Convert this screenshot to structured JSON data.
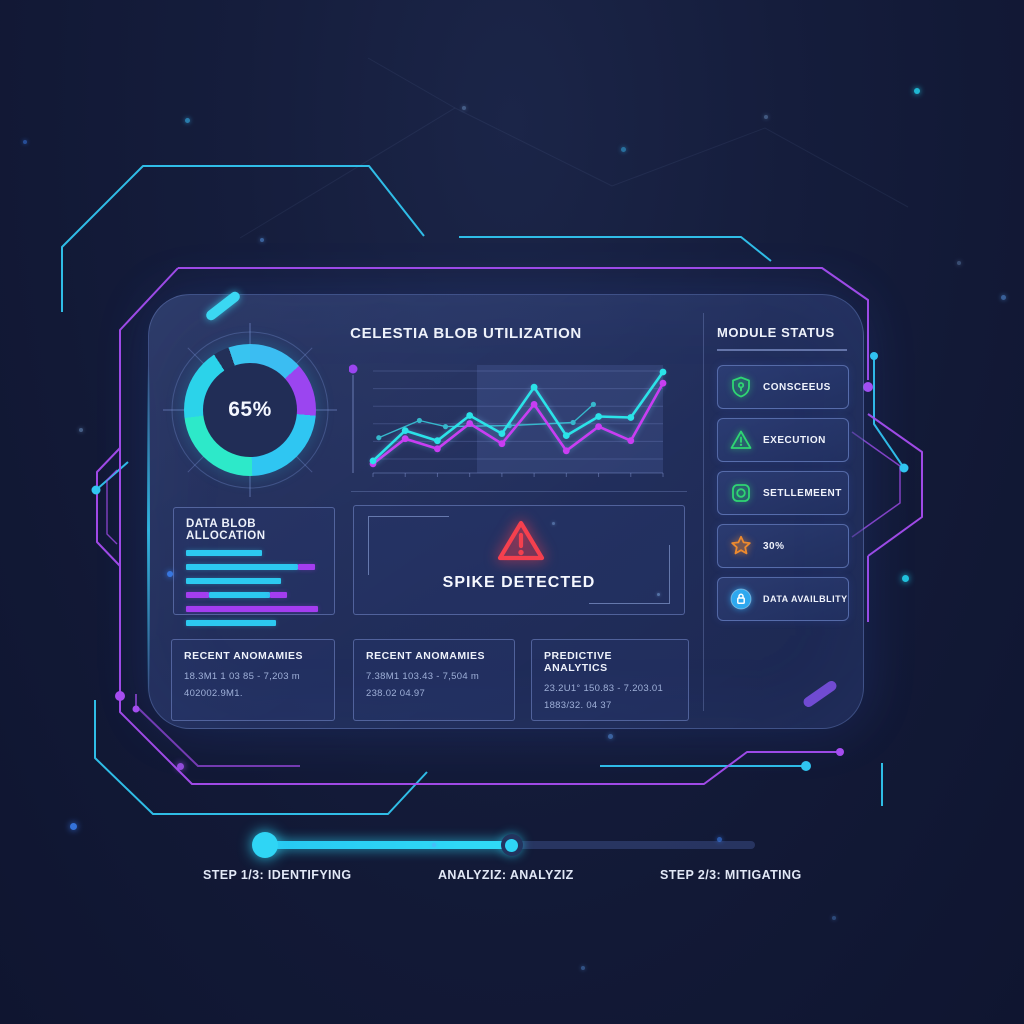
{
  "chart_data": [
    {
      "type": "donut",
      "title": "blob capacity gauge",
      "center_label": "65%",
      "slices": [
        {
          "color": "#3bbdf2",
          "start_deg": 0,
          "end_deg": 48
        },
        {
          "color": "#9b45f0",
          "start_deg": 48,
          "end_deg": 95
        },
        {
          "color": "#2fc6f2",
          "start_deg": 95,
          "end_deg": 178
        },
        {
          "color": "#2de9c9",
          "start_deg": 178,
          "end_deg": 263
        },
        {
          "color": "#2bd3ea",
          "start_deg": 263,
          "end_deg": 327
        },
        {
          "color": "#233058",
          "start_deg": 327,
          "end_deg": 341
        },
        {
          "color": "#38c4f0",
          "start_deg": 341,
          "end_deg": 360
        }
      ]
    },
    {
      "type": "line",
      "title": "CELESTIA BLOB UTILIZATION",
      "grid": true,
      "ylim": [
        0,
        105
      ],
      "series": [
        {
          "name": "trend-teal-thin",
          "color": "#36b8cc",
          "thin": true,
          "x_fraction": [
            0.02,
            0.16,
            0.25,
            0.47,
            0.69,
            0.76
          ],
          "values": [
            35,
            52,
            46,
            47,
            50,
            68
          ]
        },
        {
          "name": "blob-usage-magenta",
          "color": "#c93df2",
          "values": [
            9,
            34,
            24,
            49,
            29,
            68,
            22,
            46,
            32,
            89
          ]
        },
        {
          "name": "blob-usage-cyan",
          "color": "#2be3e8",
          "values": [
            12,
            42,
            32,
            57,
            39,
            85,
            37,
            56,
            55,
            100
          ]
        }
      ]
    },
    {
      "type": "hbar",
      "title": "DATA BLOB ALLOCATION",
      "bars": [
        [
          {
            "color": "#2cc9f0",
            "width_pct": 56
          }
        ],
        [
          {
            "color": "#2cc9f0",
            "width_pct": 82
          },
          {
            "color": "#a43df0",
            "width_pct": 13
          }
        ],
        [
          {
            "color": "#2cc9f0",
            "width_pct": 70
          }
        ],
        [
          {
            "color": "#a43df0",
            "width_pct": 17
          },
          {
            "color": "#2cc9f0",
            "width_pct": 45
          },
          {
            "color": "#a43df0",
            "width_pct": 12
          }
        ],
        [
          {
            "color": "#a43df0",
            "width_pct": 97
          }
        ],
        [
          {
            "color": "#2cc9f0",
            "width_pct": 66
          }
        ]
      ]
    }
  ],
  "alert": {
    "label": "SPIKE DETECTED",
    "icon": "warning-triangle-icon",
    "color": "#f5404e"
  },
  "module_status": {
    "title": "MODULE STATUS",
    "items": [
      {
        "icon": "shield-icon",
        "label": "CONSCEEUS",
        "icon_color": "#2fd573"
      },
      {
        "icon": "warning-triangle-icon",
        "label": "EXECUTION",
        "icon_color": "#2fd573"
      },
      {
        "icon": "settlement-frame-icon",
        "label": "SETLLEMEENT",
        "icon_color": "#2fd573"
      },
      {
        "icon": "star-icon",
        "label": "30%",
        "icon_color": "#ee8a2e"
      },
      {
        "icon": "lock-circle-icon",
        "label": "DATA AVAILBLITY",
        "icon_color": "#2da8ef"
      }
    ]
  },
  "info_panels": [
    {
      "title": "RECENT ANOMAMIES",
      "line1": "18.3M1 1 03 85 - 7,203 m",
      "line2": "402002.9M1."
    },
    {
      "title": "RECENT ANOMAMIES",
      "line1": "7.38M1 103.43 - 7,504 m",
      "line2": "238.02 04.97"
    },
    {
      "title": "PREDICTIVE ANALYTICS",
      "line1": "23.2U1° 150.83 - 7.203.01",
      "line2": "1883/32. 04 37"
    }
  ],
  "progress": {
    "filled_pct": 50.4,
    "accent": "#2fd5f5",
    "steps": [
      "STEP 1/3: IDENTIFYING",
      "ANALYZIZ: ANALYZIZ",
      "STEP 2/3: MITIGATING"
    ]
  }
}
